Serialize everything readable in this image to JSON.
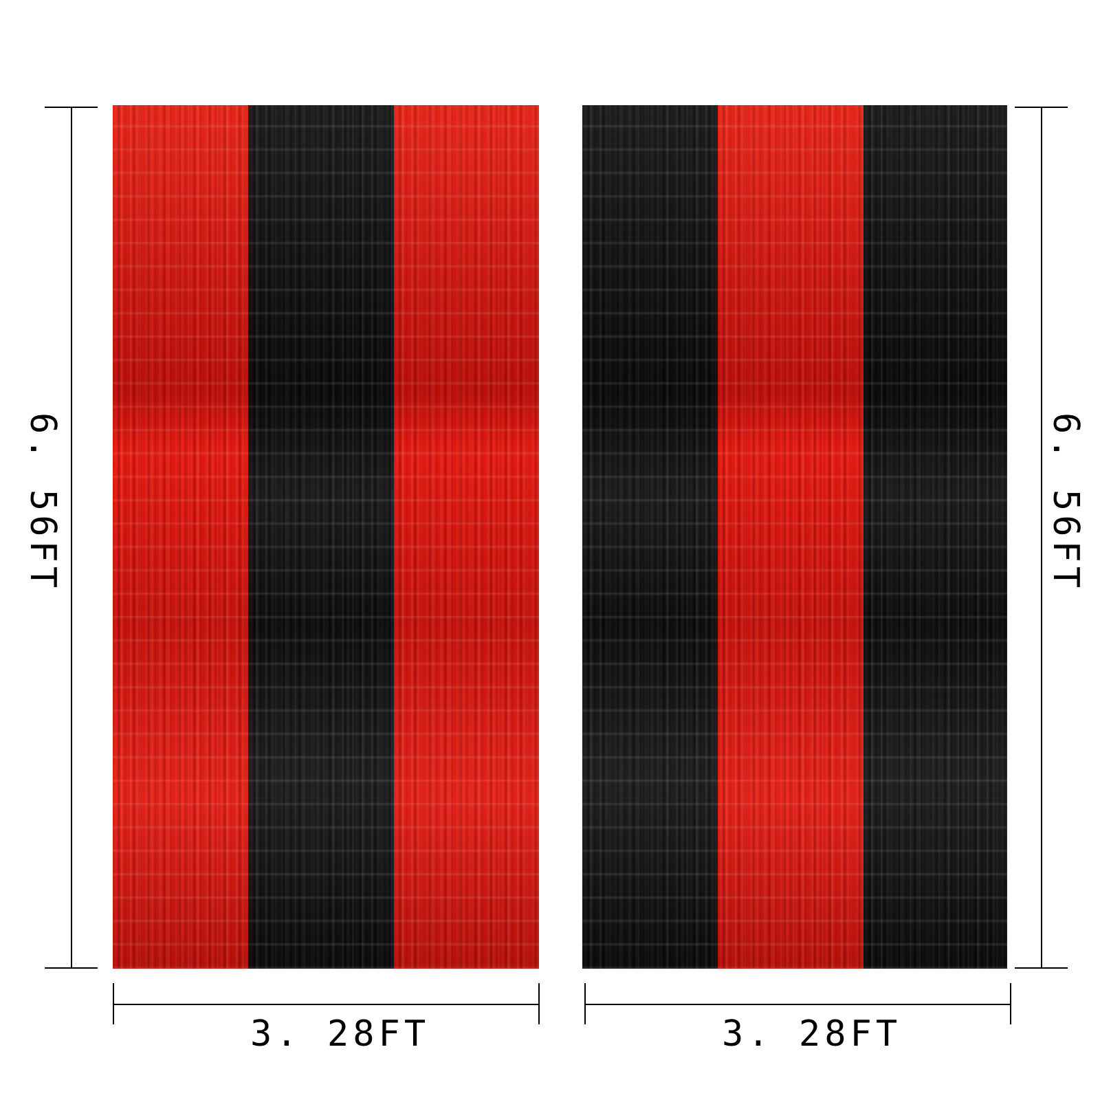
{
  "dimensions": {
    "height_label": "6. 56FT",
    "width_label": "3. 28FT"
  },
  "curtains": [
    {
      "strips": [
        "red",
        "black",
        "red"
      ]
    },
    {
      "strips": [
        "black",
        "red",
        "black"
      ]
    }
  ],
  "colors": {
    "red": "#d8150d",
    "black": "#141414"
  }
}
